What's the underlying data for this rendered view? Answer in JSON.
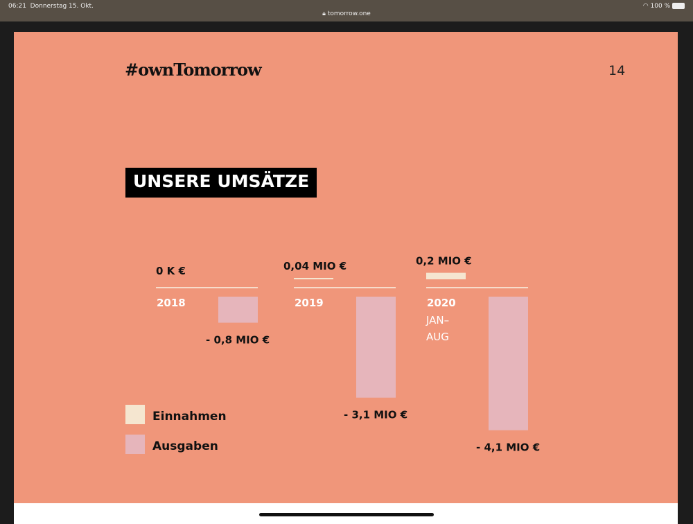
{
  "status_bar": {
    "time": "06:21",
    "date": "Donnerstag 15. Okt.",
    "url": "tomorrow.one",
    "battery": "100 %"
  },
  "slide": {
    "logo": "#ownTomorrow",
    "page_number": "14",
    "title": "UNSERE UMSÄTZE"
  },
  "colors": {
    "background": "#f0967a",
    "income": "#f5e6d0",
    "expenses": "#e6b5bb"
  },
  "chart_data": {
    "type": "bar",
    "categories": [
      "2018",
      "2019",
      "2020"
    ],
    "category_sublabels": [
      "",
      "",
      "JAN–AUG"
    ],
    "unit": "MIO €",
    "series": [
      {
        "name": "Einnahmen",
        "values": [
          0,
          0.04,
          0.2
        ],
        "labels": [
          "0 K €",
          "0,04 MIO €",
          "0,2 MIO €"
        ]
      },
      {
        "name": "Ausgaben",
        "values": [
          -0.8,
          -3.1,
          -4.1
        ],
        "labels": [
          "- 0,8 MIO €",
          "- 3,1 MIO €",
          "- 4,1 MIO €"
        ]
      }
    ],
    "legend": "bottom-left"
  }
}
